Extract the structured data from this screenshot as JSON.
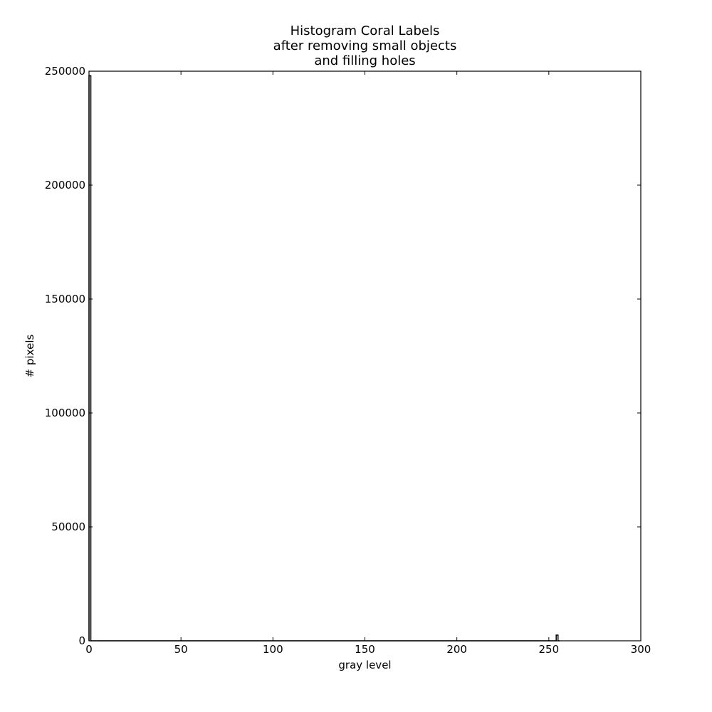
{
  "chart_data": {
    "type": "line",
    "title": [
      "Histogram Coral Labels",
      "after removing small objects",
      "and filling holes"
    ],
    "xlabel": "gray level",
    "ylabel": "# pixels",
    "xlim": [
      0,
      300
    ],
    "ylim": [
      0,
      250000
    ],
    "x_ticks": [
      "0",
      "50",
      "100",
      "150",
      "200",
      "250",
      "300"
    ],
    "y_ticks": [
      "0",
      "50000",
      "100000",
      "150000",
      "200000",
      "250000"
    ],
    "grid": false,
    "line_color": "#000000",
    "series": [
      {
        "x": [
          0,
          0,
          1,
          1,
          254,
          254,
          255,
          255,
          256
        ],
        "y": [
          0,
          248000,
          248000,
          0,
          0,
          2500,
          2500,
          0,
          0
        ]
      }
    ]
  }
}
